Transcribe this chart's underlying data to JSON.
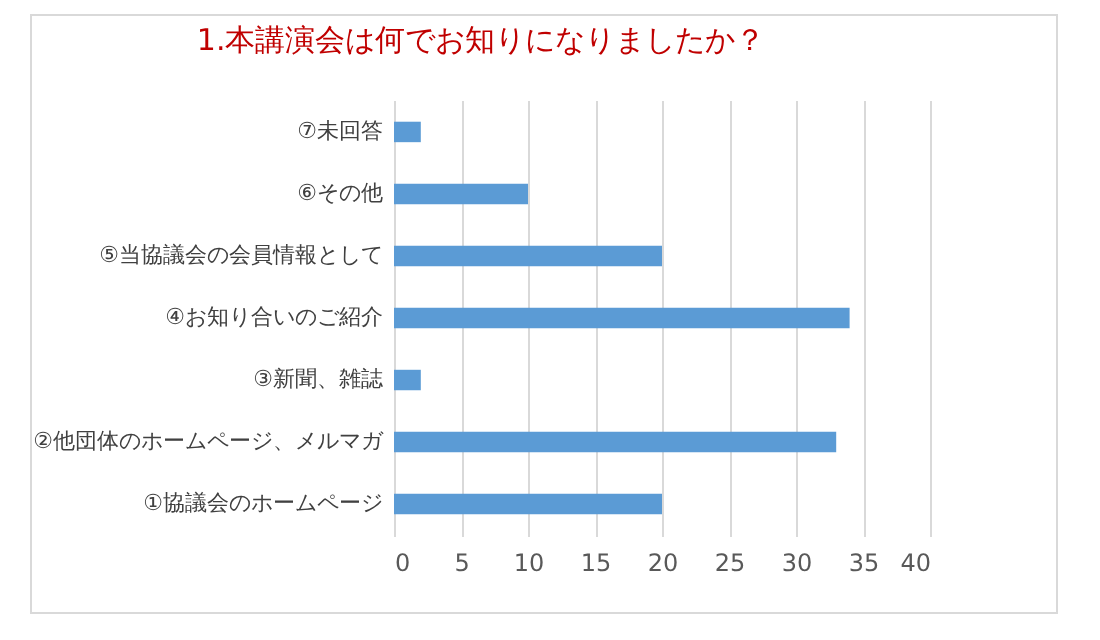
{
  "chart_data": {
    "type": "bar",
    "orientation": "horizontal",
    "title": "1.本講演会は何でお知りになりましたか？",
    "categories": [
      "⑦未回答",
      "⑥その他",
      "⑤当協議会の会員情報として",
      "④お知り合いのご紹介",
      "③新聞、雑誌",
      "②他団体のホームページ、メルマガ",
      "①協議会のホームページ"
    ],
    "values": [
      2,
      10,
      20,
      34,
      2,
      33,
      20
    ],
    "color": "#5b9bd5",
    "xlim": [
      0,
      40
    ],
    "xticks": [
      0,
      5,
      10,
      15,
      20,
      25,
      30,
      35,
      40
    ],
    "grid": "x"
  }
}
